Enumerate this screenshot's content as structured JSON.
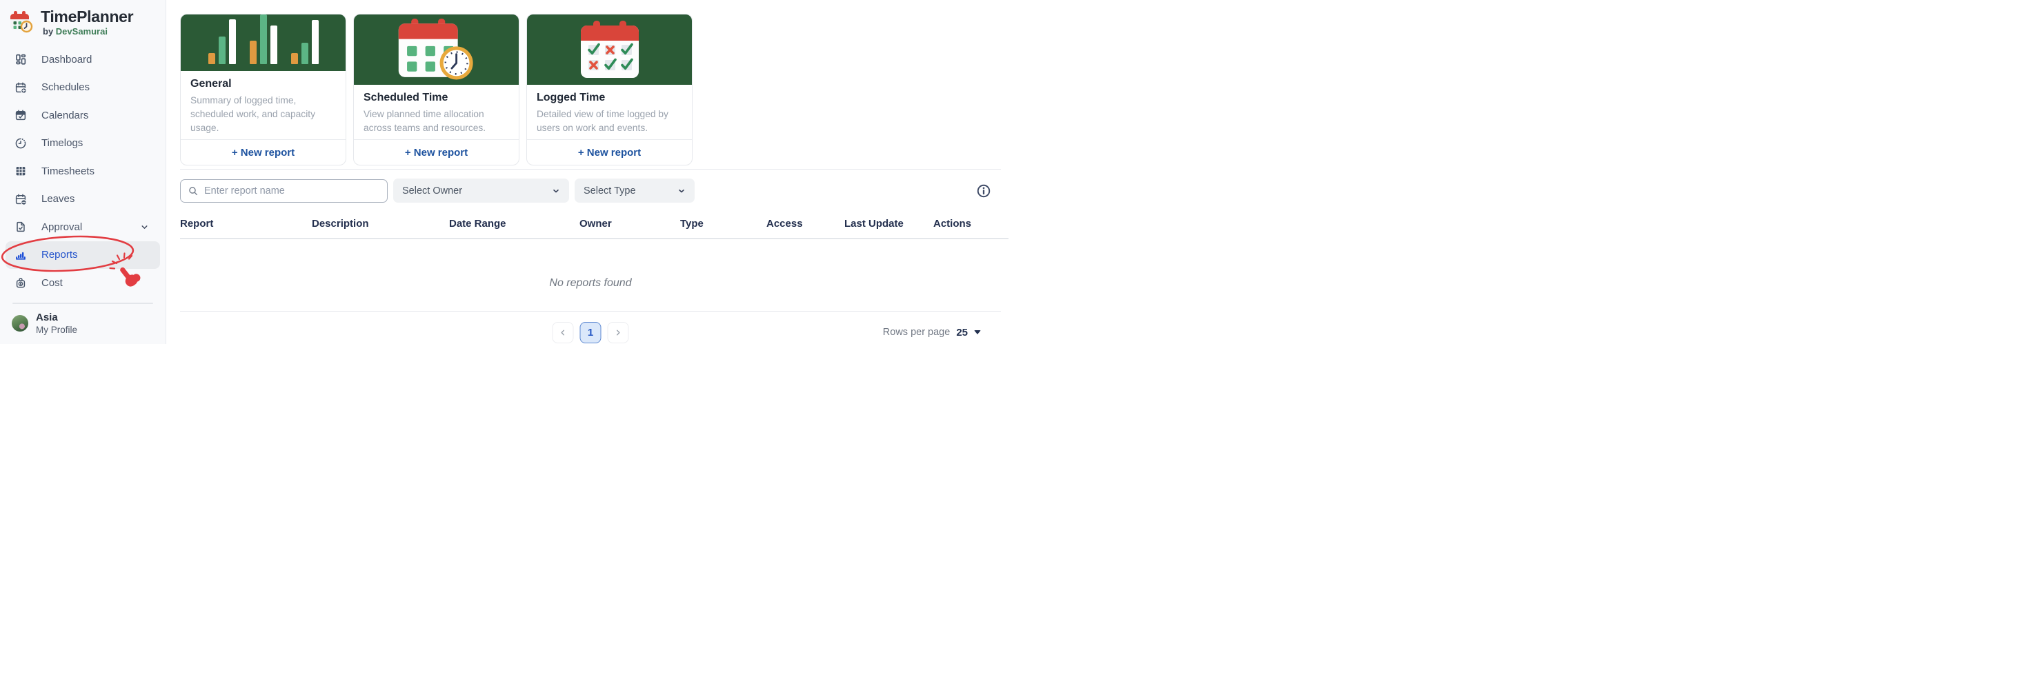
{
  "app": {
    "title": "TimePlanner",
    "byline_prefix": "by",
    "byline_brand": "DevSamurai"
  },
  "sidebar": {
    "items": [
      {
        "label": "Dashboard"
      },
      {
        "label": "Schedules"
      },
      {
        "label": "Calendars"
      },
      {
        "label": "Timelogs"
      },
      {
        "label": "Timesheets"
      },
      {
        "label": "Leaves"
      },
      {
        "label": "Approval",
        "has_submenu": true
      },
      {
        "label": "Reports",
        "active": true
      },
      {
        "label": "Cost"
      }
    ],
    "profile": {
      "name": "Asia",
      "subtitle": "My Profile"
    }
  },
  "cards": [
    {
      "title": "General",
      "description": "Summary of logged time, scheduled work, and capacity usage.",
      "action_label": "+ New report",
      "illustration": "grouped-bar-chart",
      "bars": {
        "groups": [
          [
            16,
            40,
            65
          ],
          [
            34,
            72,
            56
          ],
          [
            16,
            31,
            64
          ]
        ],
        "colors": [
          "#e09a41",
          "#5cb585",
          "#ffffff"
        ]
      }
    },
    {
      "title": "Scheduled Time",
      "description": "View planned time allocation across teams and resources.",
      "action_label": "+ New report",
      "illustration": "calendar-clock"
    },
    {
      "title": "Logged Time",
      "description": "Detailed view of time logged by users on work and events.",
      "action_label": "+ New report",
      "illustration": "calendar-checks",
      "checks": [
        [
          "check",
          "x",
          "check"
        ],
        [
          "x",
          "check",
          "check"
        ]
      ]
    }
  ],
  "filters": {
    "search_placeholder": "Enter report name",
    "owner_placeholder": "Select Owner",
    "type_placeholder": "Select Type"
  },
  "table": {
    "columns": [
      "Report",
      "Description",
      "Date Range",
      "Owner",
      "Type",
      "Access",
      "Last Update",
      "Actions"
    ],
    "empty_message": "No reports found"
  },
  "pagination": {
    "current_page": "1",
    "rows_per_page_label": "Rows per page",
    "rows_per_page_value": "25"
  },
  "colors": {
    "card_header_green": "#2b5a36",
    "sidebar_active_blue": "#2353cb",
    "new_report_blue": "#1d529f",
    "annotation_red": "#e23d42",
    "table_header_navy": "#232f4e"
  }
}
